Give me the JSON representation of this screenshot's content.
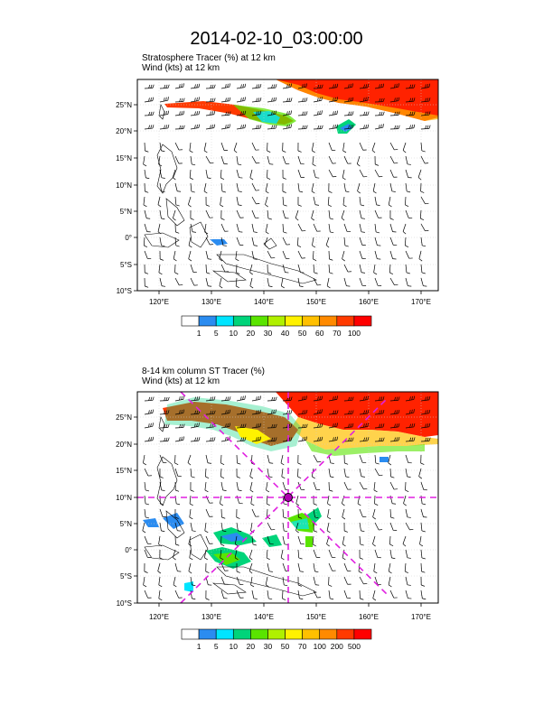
{
  "page": {
    "title": "2014-02-10_03:00:00"
  },
  "panels": [
    {
      "id": "top",
      "subtitle_line1": "Stratosphere Tracer   (%)     at   12 km",
      "subtitle_line2": "Wind    (kts)     at   12 km",
      "lon_labels": [
        "120°E",
        "130°E",
        "140°E",
        "150°E",
        "160°E",
        "170°E"
      ],
      "lat_labels": [
        "25°N",
        "20°N",
        "15°N",
        "10°N",
        "5°N",
        "0°",
        "5°S",
        "10°S"
      ],
      "colorbar_labels": [
        "1",
        "5",
        "10",
        "20",
        "30",
        "40",
        "50",
        "60",
        "70",
        "100"
      ],
      "colorbar_colors": [
        "#ffffff",
        "#2b8cf0",
        "#00e5ff",
        "#00d47a",
        "#5ae400",
        "#b0f000",
        "#fff200",
        "#ffc000",
        "#ff8a00",
        "#ff3a00",
        "#ff0000"
      ]
    },
    {
      "id": "bottom",
      "subtitle_line1": "8-14 km column ST Tracer    (%)",
      "subtitle_line2": "Wind    (kts)     at   12 km",
      "lon_labels": [
        "120°E",
        "130°E",
        "140°E",
        "150°E",
        "160°E",
        "170°E"
      ],
      "lat_labels": [
        "25°N",
        "20°N",
        "15°N",
        "10°N",
        "5°N",
        "0°",
        "5°S",
        "10°S"
      ],
      "colorbar_labels": [
        "1",
        "5",
        "10",
        "20",
        "30",
        "50",
        "70",
        "100",
        "200",
        "500"
      ],
      "colorbar_colors": [
        "#ffffff",
        "#2b8cf0",
        "#00e5ff",
        "#00d47a",
        "#5ae400",
        "#b0f000",
        "#fff200",
        "#ffc000",
        "#ff8a00",
        "#ff3a00",
        "#ff0000"
      ]
    }
  ]
}
